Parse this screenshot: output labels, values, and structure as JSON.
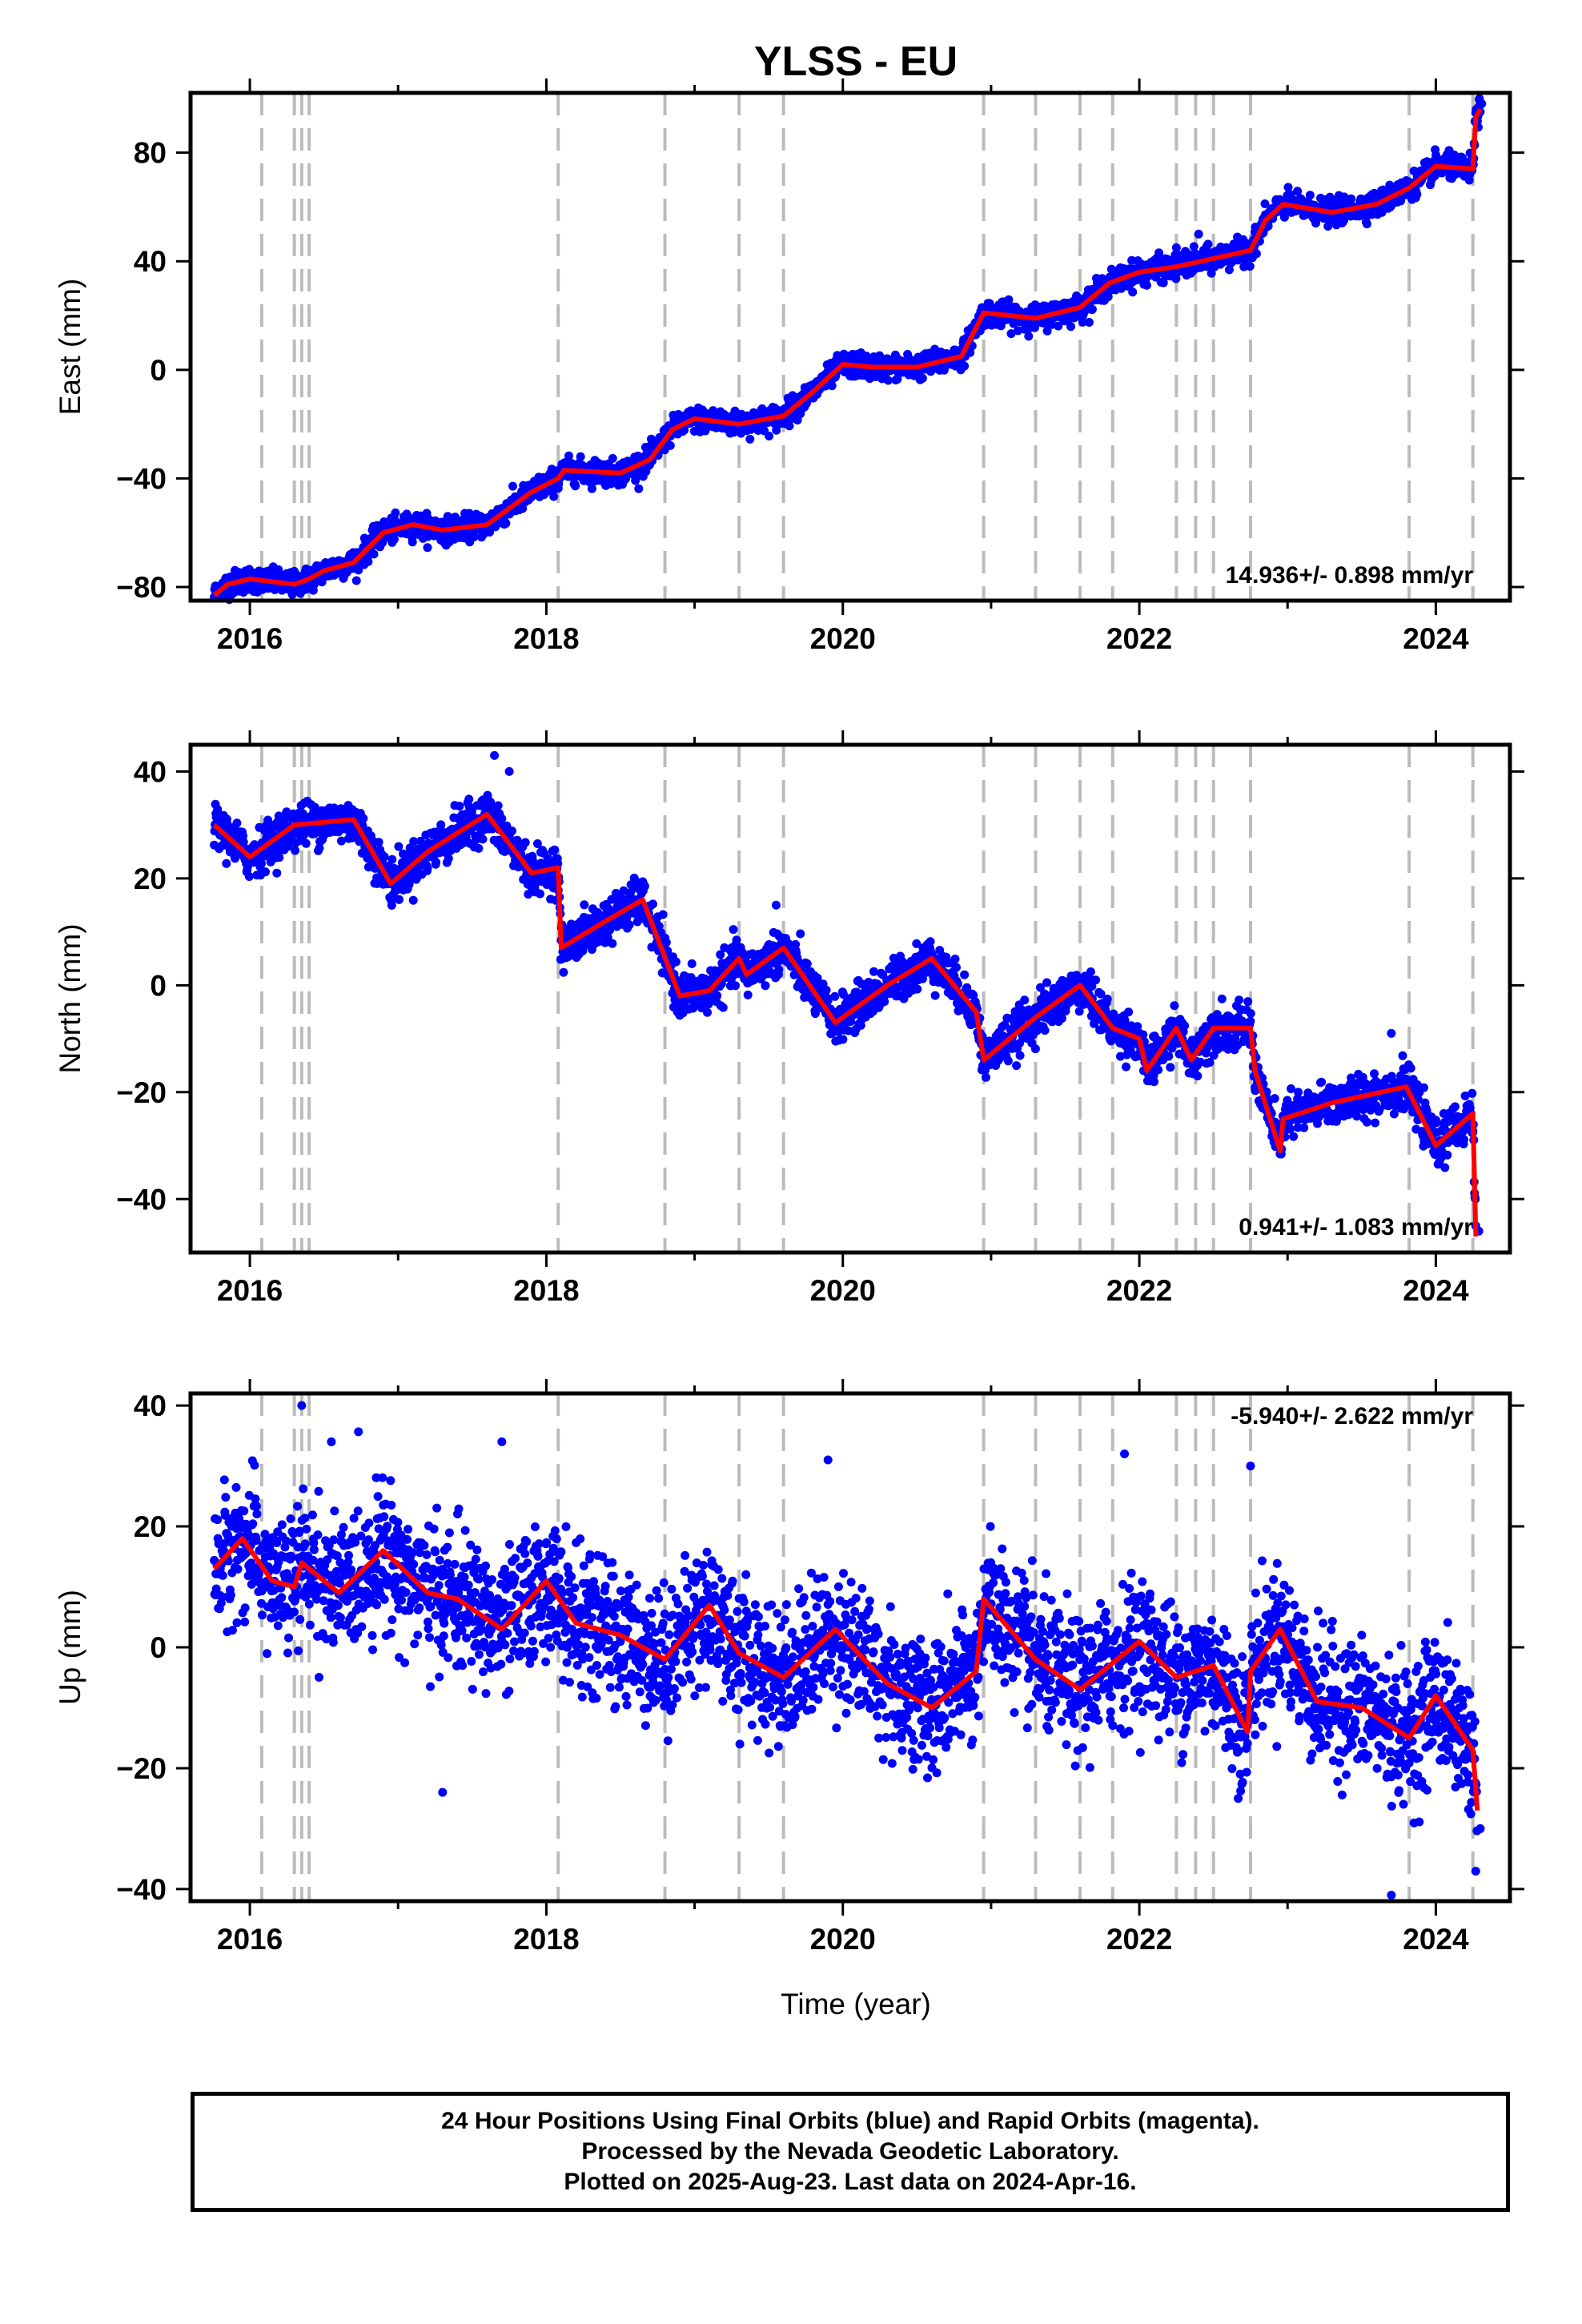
{
  "title": "YLSS - EU",
  "xlabel": "Time (year)",
  "colors": {
    "final_orbits": "#0000ff",
    "model": "#ff0000",
    "event_lines": "#bbbbbb"
  },
  "footer": {
    "line1": "24 Hour Positions Using Final Orbits (blue) and Rapid Orbits (magenta).",
    "line2": "Processed by the Nevada Geodetic Laboratory.",
    "line3": "Plotted on 2025-Aug-23. Last data on 2024-Apr-16."
  },
  "chart_data": [
    {
      "type": "scatter",
      "component": "east",
      "ylabel": "East (mm)",
      "rate_label": "14.936+/- 0.898 mm/yr",
      "xlim": [
        2015.6,
        2024.5
      ],
      "ylim": [
        -85,
        102
      ],
      "xticks": [
        2016,
        2018,
        2020,
        2022,
        2024
      ],
      "yticks": [
        -80,
        -40,
        0,
        40,
        80
      ],
      "event_lines": [
        2016.08,
        2016.3,
        2016.35,
        2016.4,
        2018.08,
        2018.8,
        2019.3,
        2019.6,
        2020.95,
        2021.3,
        2021.6,
        2021.82,
        2022.25,
        2022.38,
        2022.5,
        2022.75,
        2023.82,
        2024.25
      ],
      "model": [
        [
          2015.76,
          -83
        ],
        [
          2015.85,
          -79
        ],
        [
          2016.0,
          -77
        ],
        [
          2016.15,
          -78
        ],
        [
          2016.3,
          -79
        ],
        [
          2016.4,
          -77
        ],
        [
          2016.5,
          -74
        ],
        [
          2016.7,
          -71
        ],
        [
          2016.9,
          -60
        ],
        [
          2017.1,
          -57
        ],
        [
          2017.3,
          -59
        ],
        [
          2017.6,
          -57
        ],
        [
          2017.9,
          -45
        ],
        [
          2018.08,
          -40
        ],
        [
          2018.12,
          -37
        ],
        [
          2018.5,
          -38
        ],
        [
          2018.7,
          -33
        ],
        [
          2018.85,
          -22
        ],
        [
          2019.0,
          -18
        ],
        [
          2019.3,
          -20
        ],
        [
          2019.6,
          -17
        ],
        [
          2019.8,
          -8
        ],
        [
          2020.0,
          2
        ],
        [
          2020.2,
          1
        ],
        [
          2020.5,
          1
        ],
        [
          2020.8,
          5
        ],
        [
          2020.95,
          21
        ],
        [
          2021.3,
          19
        ],
        [
          2021.6,
          23
        ],
        [
          2021.8,
          32
        ],
        [
          2022.0,
          36
        ],
        [
          2022.25,
          38
        ],
        [
          2022.5,
          41
        ],
        [
          2022.75,
          44
        ],
        [
          2022.85,
          55
        ],
        [
          2022.97,
          61
        ],
        [
          2023.3,
          58
        ],
        [
          2023.6,
          61
        ],
        [
          2023.82,
          67
        ],
        [
          2024.0,
          75
        ],
        [
          2024.25,
          74
        ],
        [
          2024.27,
          93
        ],
        [
          2024.3,
          96
        ]
      ],
      "scatter_sigma": 2.2,
      "outliers": [
        [
          2022.25,
          45
        ],
        [
          2022.4,
          50
        ],
        [
          2022.7,
          48
        ],
        [
          2024.31,
          98
        ],
        [
          2024.29,
          97
        ]
      ]
    },
    {
      "type": "scatter",
      "component": "north",
      "ylabel": "North (mm)",
      "rate_label": "0.941+/- 1.083 mm/yr",
      "xlim": [
        2015.6,
        2024.5
      ],
      "ylim": [
        -50,
        45
      ],
      "xticks": [
        2016,
        2018,
        2020,
        2022,
        2024
      ],
      "yticks": [
        -40,
        -20,
        0,
        20,
        40
      ],
      "event_lines": [
        2016.08,
        2016.3,
        2016.35,
        2016.4,
        2018.08,
        2018.8,
        2019.3,
        2019.6,
        2020.95,
        2021.3,
        2021.6,
        2021.82,
        2022.25,
        2022.38,
        2022.5,
        2022.75,
        2023.82,
        2024.25
      ],
      "model": [
        [
          2015.76,
          30
        ],
        [
          2016.0,
          24
        ],
        [
          2016.3,
          30
        ],
        [
          2016.7,
          31
        ],
        [
          2016.95,
          19
        ],
        [
          2017.2,
          25
        ],
        [
          2017.6,
          32
        ],
        [
          2017.9,
          21
        ],
        [
          2018.08,
          22
        ],
        [
          2018.1,
          7
        ],
        [
          2018.4,
          12
        ],
        [
          2018.65,
          16
        ],
        [
          2018.9,
          -2
        ],
        [
          2019.1,
          -1
        ],
        [
          2019.3,
          5
        ],
        [
          2019.35,
          2
        ],
        [
          2019.6,
          7
        ],
        [
          2019.95,
          -7
        ],
        [
          2020.3,
          0
        ],
        [
          2020.6,
          5
        ],
        [
          2020.9,
          -5
        ],
        [
          2020.95,
          -14
        ],
        [
          2021.3,
          -6
        ],
        [
          2021.6,
          0
        ],
        [
          2021.82,
          -8
        ],
        [
          2022.0,
          -10
        ],
        [
          2022.05,
          -16
        ],
        [
          2022.25,
          -8
        ],
        [
          2022.35,
          -14
        ],
        [
          2022.5,
          -8
        ],
        [
          2022.75,
          -8
        ],
        [
          2022.78,
          -16
        ],
        [
          2022.95,
          -31
        ],
        [
          2022.97,
          -25
        ],
        [
          2023.3,
          -22
        ],
        [
          2023.8,
          -19
        ],
        [
          2024.0,
          -30
        ],
        [
          2024.25,
          -24
        ],
        [
          2024.27,
          -47
        ]
      ],
      "scatter_sigma": 2.0,
      "outliers": [
        [
          2017.65,
          43
        ],
        [
          2017.75,
          40
        ],
        [
          2019.55,
          15
        ],
        [
          2023.7,
          -9
        ],
        [
          2024.29,
          -46
        ]
      ]
    },
    {
      "type": "scatter",
      "component": "up",
      "ylabel": "Up (mm)",
      "rate_label": "-5.940+/- 2.622 mm/yr",
      "xlim": [
        2015.6,
        2024.5
      ],
      "ylim": [
        -42,
        42
      ],
      "xticks": [
        2016,
        2018,
        2020,
        2022,
        2024
      ],
      "yticks": [
        -40,
        -20,
        0,
        20,
        40
      ],
      "event_lines": [
        2016.08,
        2016.3,
        2016.35,
        2016.4,
        2018.08,
        2018.8,
        2019.3,
        2019.6,
        2020.95,
        2021.3,
        2021.6,
        2021.82,
        2022.25,
        2022.38,
        2022.5,
        2022.75,
        2023.82,
        2024.25
      ],
      "model": [
        [
          2015.76,
          13
        ],
        [
          2015.95,
          18
        ],
        [
          2016.15,
          11
        ],
        [
          2016.3,
          10
        ],
        [
          2016.35,
          14
        ],
        [
          2016.6,
          9
        ],
        [
          2016.9,
          16
        ],
        [
          2017.2,
          9
        ],
        [
          2017.4,
          8
        ],
        [
          2017.7,
          3
        ],
        [
          2018.0,
          11
        ],
        [
          2018.2,
          4
        ],
        [
          2018.5,
          2
        ],
        [
          2018.8,
          -2
        ],
        [
          2019.1,
          7
        ],
        [
          2019.3,
          -1
        ],
        [
          2019.6,
          -5
        ],
        [
          2019.95,
          3
        ],
        [
          2020.3,
          -6
        ],
        [
          2020.6,
          -10
        ],
        [
          2020.9,
          -4
        ],
        [
          2020.95,
          8
        ],
        [
          2021.3,
          -2
        ],
        [
          2021.6,
          -7
        ],
        [
          2022.0,
          1
        ],
        [
          2022.25,
          -5
        ],
        [
          2022.5,
          -3
        ],
        [
          2022.73,
          -14
        ],
        [
          2022.75,
          -4
        ],
        [
          2022.95,
          3
        ],
        [
          2023.2,
          -9
        ],
        [
          2023.5,
          -10
        ],
        [
          2023.82,
          -15
        ],
        [
          2024.0,
          -8
        ],
        [
          2024.25,
          -17
        ],
        [
          2024.28,
          -27
        ]
      ],
      "scatter_sigma": 5.5,
      "outliers": [
        [
          2016.35,
          40
        ],
        [
          2016.55,
          34
        ],
        [
          2017.7,
          34
        ],
        [
          2019.9,
          31
        ],
        [
          2021.9,
          32
        ],
        [
          2022.75,
          30
        ],
        [
          2023.7,
          -41
        ],
        [
          2017.3,
          -24
        ],
        [
          2024.3,
          -30
        ]
      ]
    }
  ]
}
